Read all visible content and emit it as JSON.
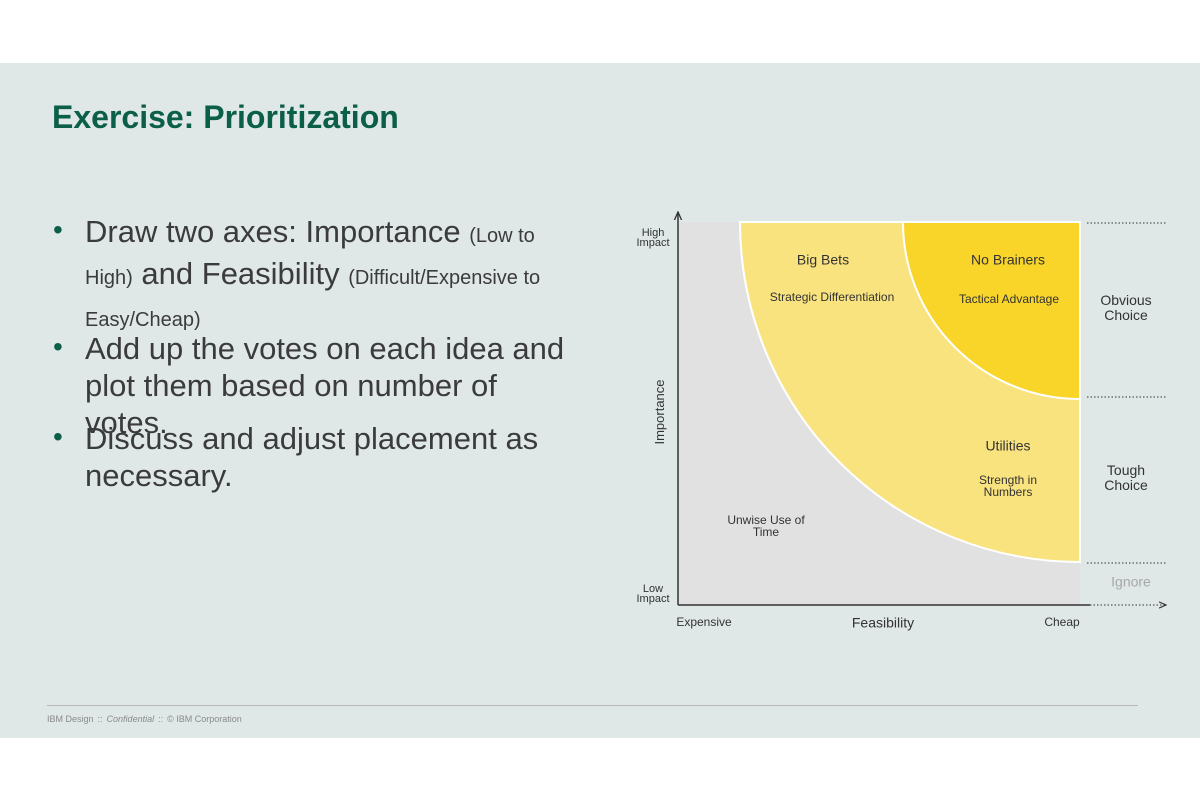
{
  "header": {
    "title": "Exercise: Prioritization"
  },
  "bullets": [
    [
      "Draw two axes: Importance",
      "(Low to High)",
      "and Feasibility",
      "(Difficult/Expensive to Easy/Cheap)"
    ],
    [
      "Add up the votes on each idea and plot them based on number of votes."
    ],
    [
      "Discuss and adjust placement as necessary."
    ]
  ],
  "diagram": {
    "y_axis": {
      "label": "Importance",
      "high": "High Impact",
      "low": "Low Impact"
    },
    "x_axis": {
      "label": "Feasibility",
      "low": "Expensive",
      "high": "Cheap"
    },
    "zones": [
      {
        "name": "Big Bets",
        "description": "Strategic Differentiation"
      },
      {
        "name": "No Brainers",
        "description": "Tactical Advantage"
      },
      {
        "name": "Utilities",
        "description": "Strength in Numbers"
      },
      {
        "name": "Unwise Use of Time"
      }
    ],
    "bands": [
      "Obvious Choice",
      "Tough Choice",
      "Ignore"
    ]
  },
  "footer": [
    "IBM Design",
    "::",
    "Confidential",
    "::",
    "© IBM Corporation"
  ]
}
